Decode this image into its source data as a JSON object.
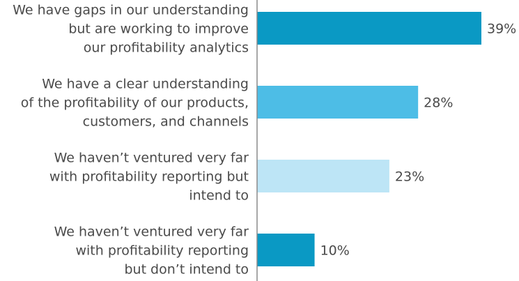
{
  "chart_data": {
    "type": "bar",
    "orientation": "horizontal",
    "categories": [
      [
        "We have gaps in our understanding",
        "but are working to improve",
        "our profitability analytics"
      ],
      [
        "We have a clear understanding",
        "of the profitability of our products,",
        "customers, and channels"
      ],
      [
        "We haven’t ventured very far",
        "with profitability reporting but",
        "intend to"
      ],
      [
        "We haven’t ventured very far",
        "with profitability reporting",
        "but don’t intend to"
      ]
    ],
    "values": [
      39,
      28,
      23,
      10
    ],
    "value_labels": [
      "39%",
      "28%",
      "23%",
      "10%"
    ],
    "colors": [
      "#0a99c4",
      "#4dbde6",
      "#bde5f6",
      "#0a99c4"
    ],
    "axis_color": "#8a8a8a",
    "xlim": [
      0,
      42
    ],
    "grid": false,
    "legend": "none"
  }
}
